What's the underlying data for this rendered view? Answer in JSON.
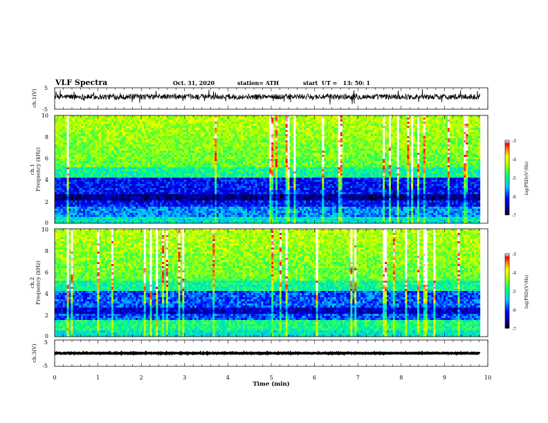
{
  "header": {
    "title": "VLF Spectra",
    "date": "Oct. 31, 2020",
    "station": "station= ATH",
    "start": "start  UT =   13: 50: 1"
  },
  "chart_data": [
    {
      "type": "line",
      "name": "ch1-waveform",
      "ylabel": "ch.1(V)",
      "ylim": [
        -5,
        5
      ],
      "yticks": [
        "5",
        "-5"
      ],
      "xlim": [
        0,
        10
      ],
      "x_extent": [
        0,
        9.82
      ],
      "baseline": 0.8,
      "noise": 1.3
    },
    {
      "type": "heatmap",
      "name": "ch1-spectrogram",
      "ylabel": "ch.1\nFrequency (kHz)",
      "ylim": [
        0,
        10
      ],
      "yticks": [
        "0",
        "2",
        "4",
        "6",
        "8",
        "10"
      ],
      "xlim": [
        0,
        10
      ],
      "x_extent": [
        0,
        9.82
      ],
      "colorbar": {
        "label": "log(PSD)(V²/Hz)",
        "range": [
          -7,
          -3
        ],
        "ticks": [
          "-3",
          "-4",
          "-5",
          "-6",
          "-7"
        ]
      }
    },
    {
      "type": "heatmap",
      "name": "ch2-spectrogram",
      "ylabel": "ch.2\nFrequency (kHz)",
      "ylim": [
        0,
        10
      ],
      "yticks": [
        "0",
        "2",
        "4",
        "6",
        "8",
        "10"
      ],
      "xlim": [
        0,
        10
      ],
      "x_extent": [
        0,
        9.82
      ],
      "colorbar": {
        "label": "log(PSD)(V²/Hz)",
        "range": [
          -7,
          -3
        ],
        "ticks": [
          "-3",
          "-4",
          "-5",
          "-6",
          "-7"
        ]
      }
    },
    {
      "type": "line",
      "name": "ch3-waveform",
      "ylabel": "ch.3(V)",
      "ylim": [
        -5,
        5
      ],
      "yticks": [
        "5",
        "-5"
      ],
      "xlim": [
        0,
        10
      ],
      "x_extent": [
        0,
        9.82
      ],
      "baseline": 0,
      "noise": 0.15
    }
  ],
  "xaxis": {
    "label": "Time (min)",
    "ticks": [
      "0",
      "1",
      "2",
      "3",
      "4",
      "5",
      "6",
      "7",
      "8",
      "9",
      "10"
    ]
  }
}
